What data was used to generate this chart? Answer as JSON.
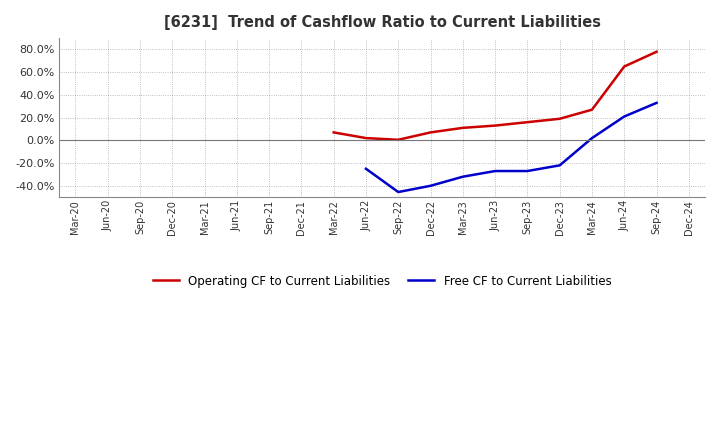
{
  "title": "[6231]  Trend of Cashflow Ratio to Current Liabilities",
  "x_labels": [
    "Mar-20",
    "Jun-20",
    "Sep-20",
    "Dec-20",
    "Mar-21",
    "Jun-21",
    "Sep-21",
    "Dec-21",
    "Mar-22",
    "Jun-22",
    "Sep-22",
    "Dec-22",
    "Mar-23",
    "Jun-23",
    "Sep-23",
    "Dec-23",
    "Mar-24",
    "Jun-24",
    "Sep-24",
    "Dec-24"
  ],
  "operating_cf": [
    null,
    null,
    null,
    null,
    null,
    null,
    null,
    null,
    0.07,
    0.02,
    0.005,
    0.07,
    0.11,
    0.13,
    0.16,
    0.19,
    0.27,
    0.65,
    0.78,
    null
  ],
  "free_cf": [
    null,
    null,
    null,
    null,
    null,
    null,
    null,
    null,
    null,
    -0.25,
    -0.455,
    -0.4,
    -0.32,
    -0.27,
    -0.27,
    -0.22,
    0.02,
    0.21,
    0.33,
    null
  ],
  "ylim": [
    -0.5,
    0.9
  ],
  "yticks": [
    -0.4,
    -0.2,
    0.0,
    0.2,
    0.4,
    0.6,
    0.8
  ],
  "operating_color": "#cc0000",
  "free_color": "#0000cc",
  "background_color": "#ffffff",
  "plot_bg_color": "#ffffff",
  "grid_color": "#aaaaaa",
  "legend_op": "Operating CF to Current Liabilities",
  "legend_free": "Free CF to Current Liabilities",
  "title_color": "#333333"
}
